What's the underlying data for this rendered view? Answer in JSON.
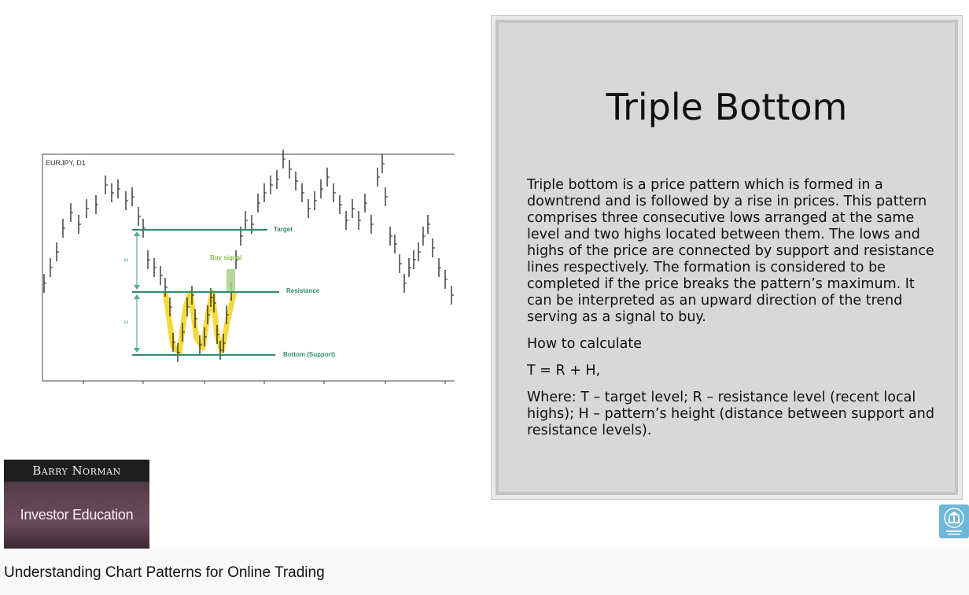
{
  "video_title": "Understanding Chart Patterns for Online Trading",
  "slide": {
    "title": "Triple Bottom",
    "paragraphs": [
      "Triple bottom is a price pattern which is formed in a downtrend and is followed by a rise in prices. This pattern comprises three consecutive lows arranged at the same level and two highs located between them. The lows and highs of the price are connected by support and resistance lines respectively. The formation is considered to be completed if the price breaks the pattern’s maximum. It can be interpreted as an upward direction of the trend serving as a signal to buy.",
      "How to calculate",
      "T = R + H,",
      "Where: T – target level; R – resistance level (recent local highs); H – pattern’s height (distance between support and resistance levels)."
    ]
  },
  "chart": {
    "symbol_label": "EURJPY, D1",
    "target_label": "Target",
    "buy_signal_label": "Buy signal",
    "resistance_label": "Resistance",
    "support_label": "Bottom (Support)",
    "height_label": "H",
    "accent_color": "#2e8b6e",
    "pattern_color": "#f2d21b",
    "signal_color": "#a9d08e"
  },
  "branding": {
    "name": "Barry Norman",
    "subtitle": "Investor Education",
    "logo_icon": "institute-building-icon"
  }
}
